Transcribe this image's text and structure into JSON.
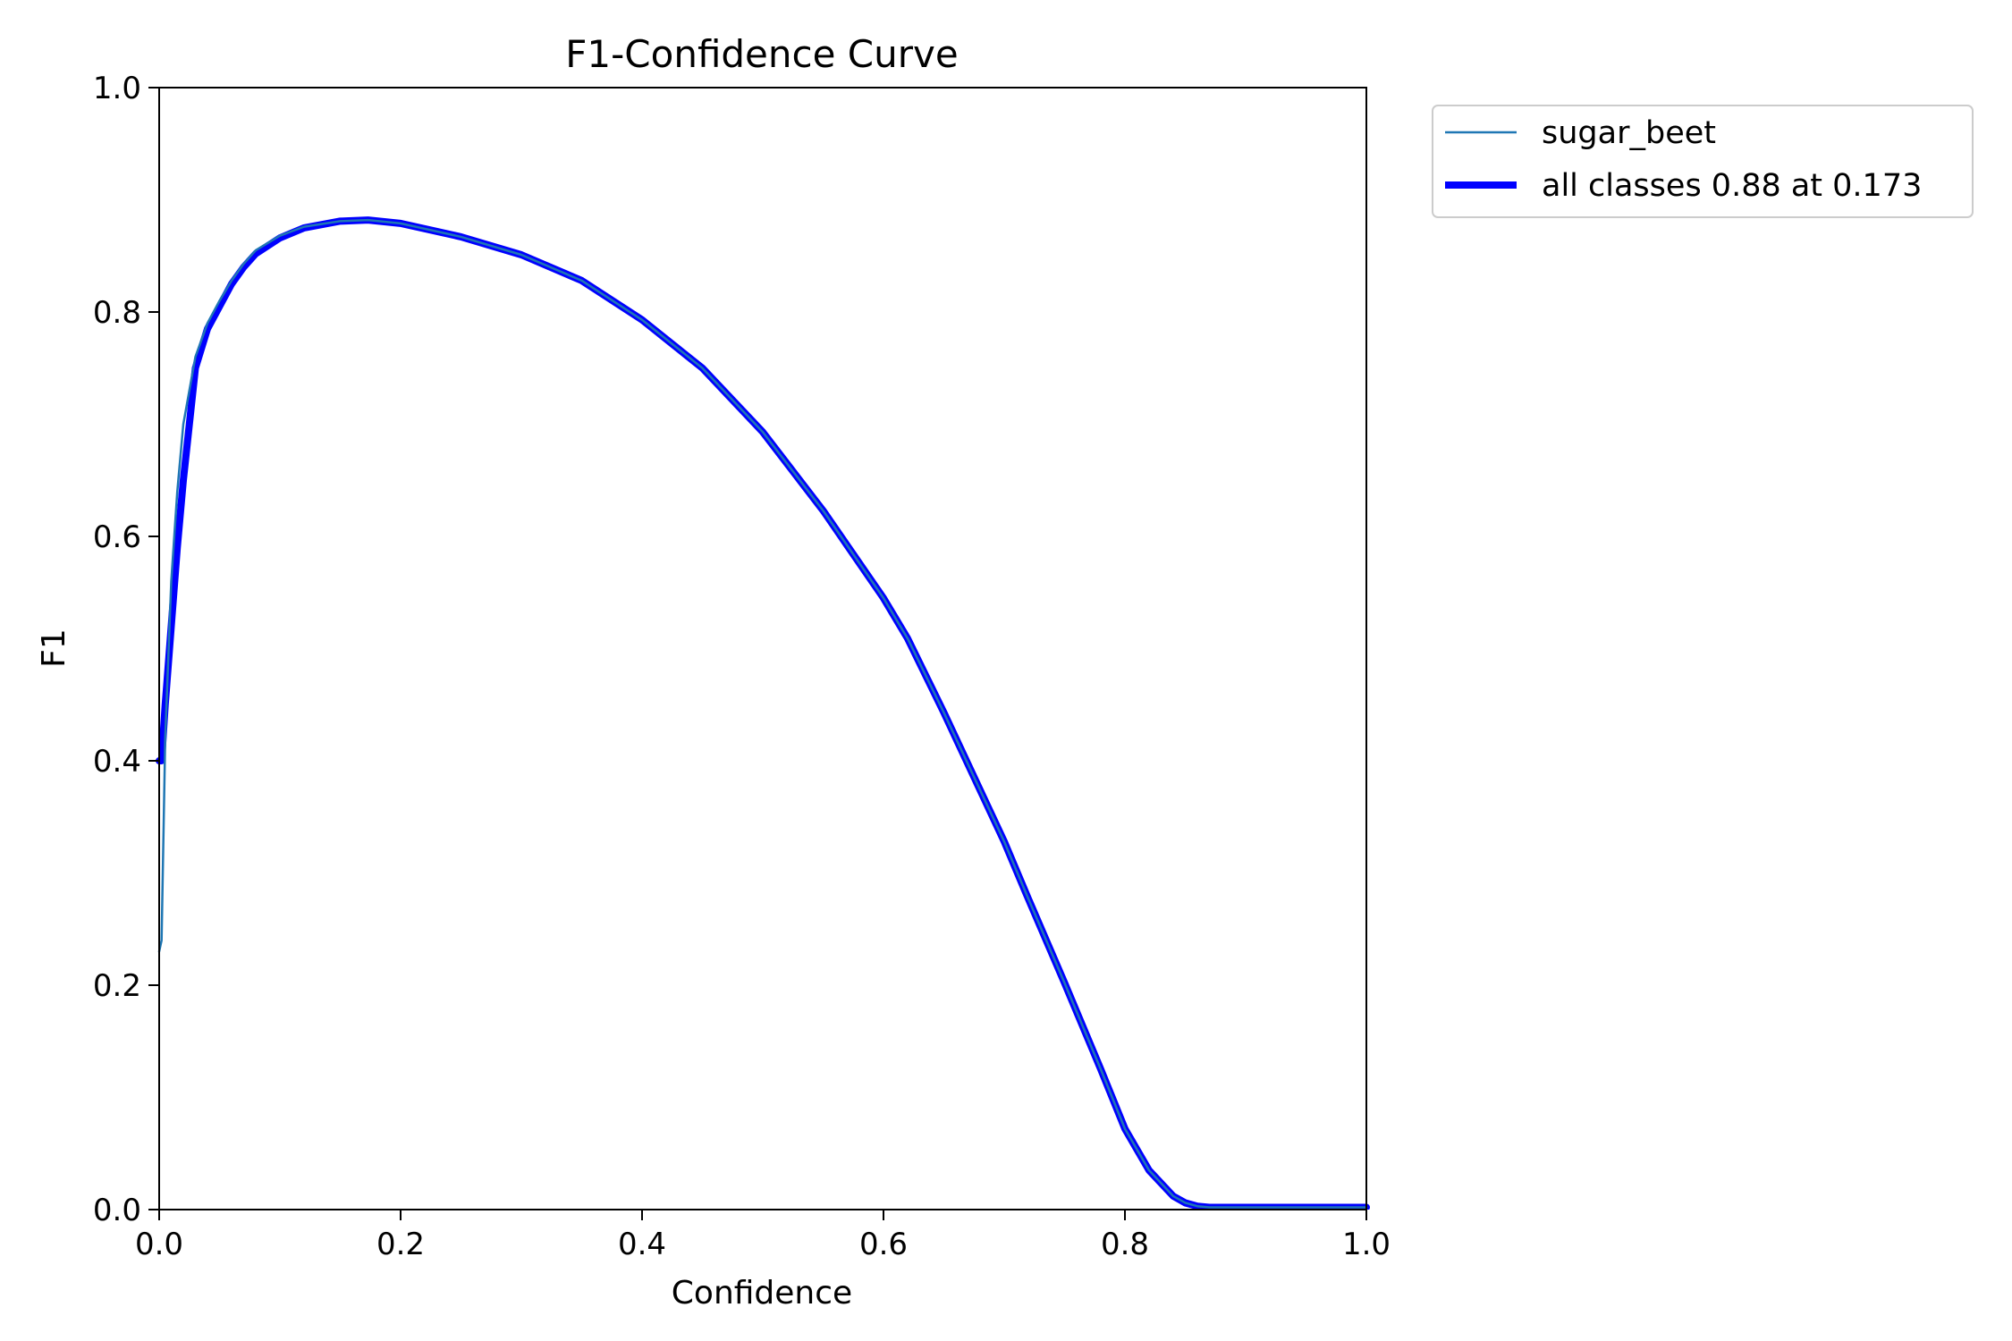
{
  "chart_data": {
    "type": "line",
    "title": "F1-Confidence Curve",
    "xlabel": "Confidence",
    "ylabel": "F1",
    "xlim": [
      0.0,
      1.0
    ],
    "ylim": [
      0.0,
      1.0
    ],
    "x_ticks": [
      "0.0",
      "0.2",
      "0.4",
      "0.6",
      "0.8",
      "1.0"
    ],
    "y_ticks": [
      "0.0",
      "0.2",
      "0.4",
      "0.6",
      "0.8",
      "1.0"
    ],
    "grid": false,
    "legend_placement": "outside-top-right",
    "series": [
      {
        "name": "sugar_beet",
        "color": "#1f77b4",
        "style": "thin",
        "x": [
          0.0,
          0.002,
          0.005,
          0.01,
          0.015,
          0.02,
          0.03,
          0.04,
          0.05,
          0.06,
          0.07,
          0.08,
          0.1,
          0.12,
          0.15,
          0.173,
          0.2,
          0.25,
          0.3,
          0.35,
          0.4,
          0.45,
          0.5,
          0.55,
          0.6,
          0.62,
          0.65,
          0.7,
          0.72,
          0.75,
          0.78,
          0.8,
          0.82,
          0.84,
          0.85,
          0.86,
          0.87,
          0.88,
          0.9,
          1.0
        ],
        "y": [
          0.23,
          0.24,
          0.42,
          0.56,
          0.64,
          0.7,
          0.76,
          0.79,
          0.81,
          0.828,
          0.843,
          0.855,
          0.868,
          0.876,
          0.881,
          0.882,
          0.879,
          0.867,
          0.851,
          0.828,
          0.793,
          0.75,
          0.693,
          0.623,
          0.545,
          0.509,
          0.443,
          0.328,
          0.277,
          0.202,
          0.125,
          0.072,
          0.035,
          0.012,
          0.006,
          0.003,
          0.002,
          0.002,
          0.002,
          0.002
        ]
      },
      {
        "name": "all classes 0.88 at 0.173",
        "color": "#0000ff",
        "style": "thick",
        "x": [
          0.0,
          0.002,
          0.005,
          0.01,
          0.015,
          0.02,
          0.03,
          0.04,
          0.05,
          0.06,
          0.07,
          0.08,
          0.1,
          0.12,
          0.15,
          0.173,
          0.2,
          0.25,
          0.3,
          0.35,
          0.4,
          0.45,
          0.5,
          0.55,
          0.6,
          0.62,
          0.65,
          0.7,
          0.72,
          0.75,
          0.78,
          0.8,
          0.82,
          0.84,
          0.85,
          0.86,
          0.87,
          0.88,
          0.9,
          1.0
        ],
        "y": [
          0.4,
          0.4,
          0.45,
          0.52,
          0.59,
          0.65,
          0.75,
          0.785,
          0.805,
          0.825,
          0.84,
          0.852,
          0.866,
          0.875,
          0.881,
          0.882,
          0.879,
          0.867,
          0.851,
          0.828,
          0.793,
          0.75,
          0.693,
          0.623,
          0.545,
          0.509,
          0.443,
          0.328,
          0.277,
          0.202,
          0.125,
          0.072,
          0.035,
          0.012,
          0.006,
          0.003,
          0.002,
          0.002,
          0.002,
          0.002
        ]
      }
    ]
  }
}
